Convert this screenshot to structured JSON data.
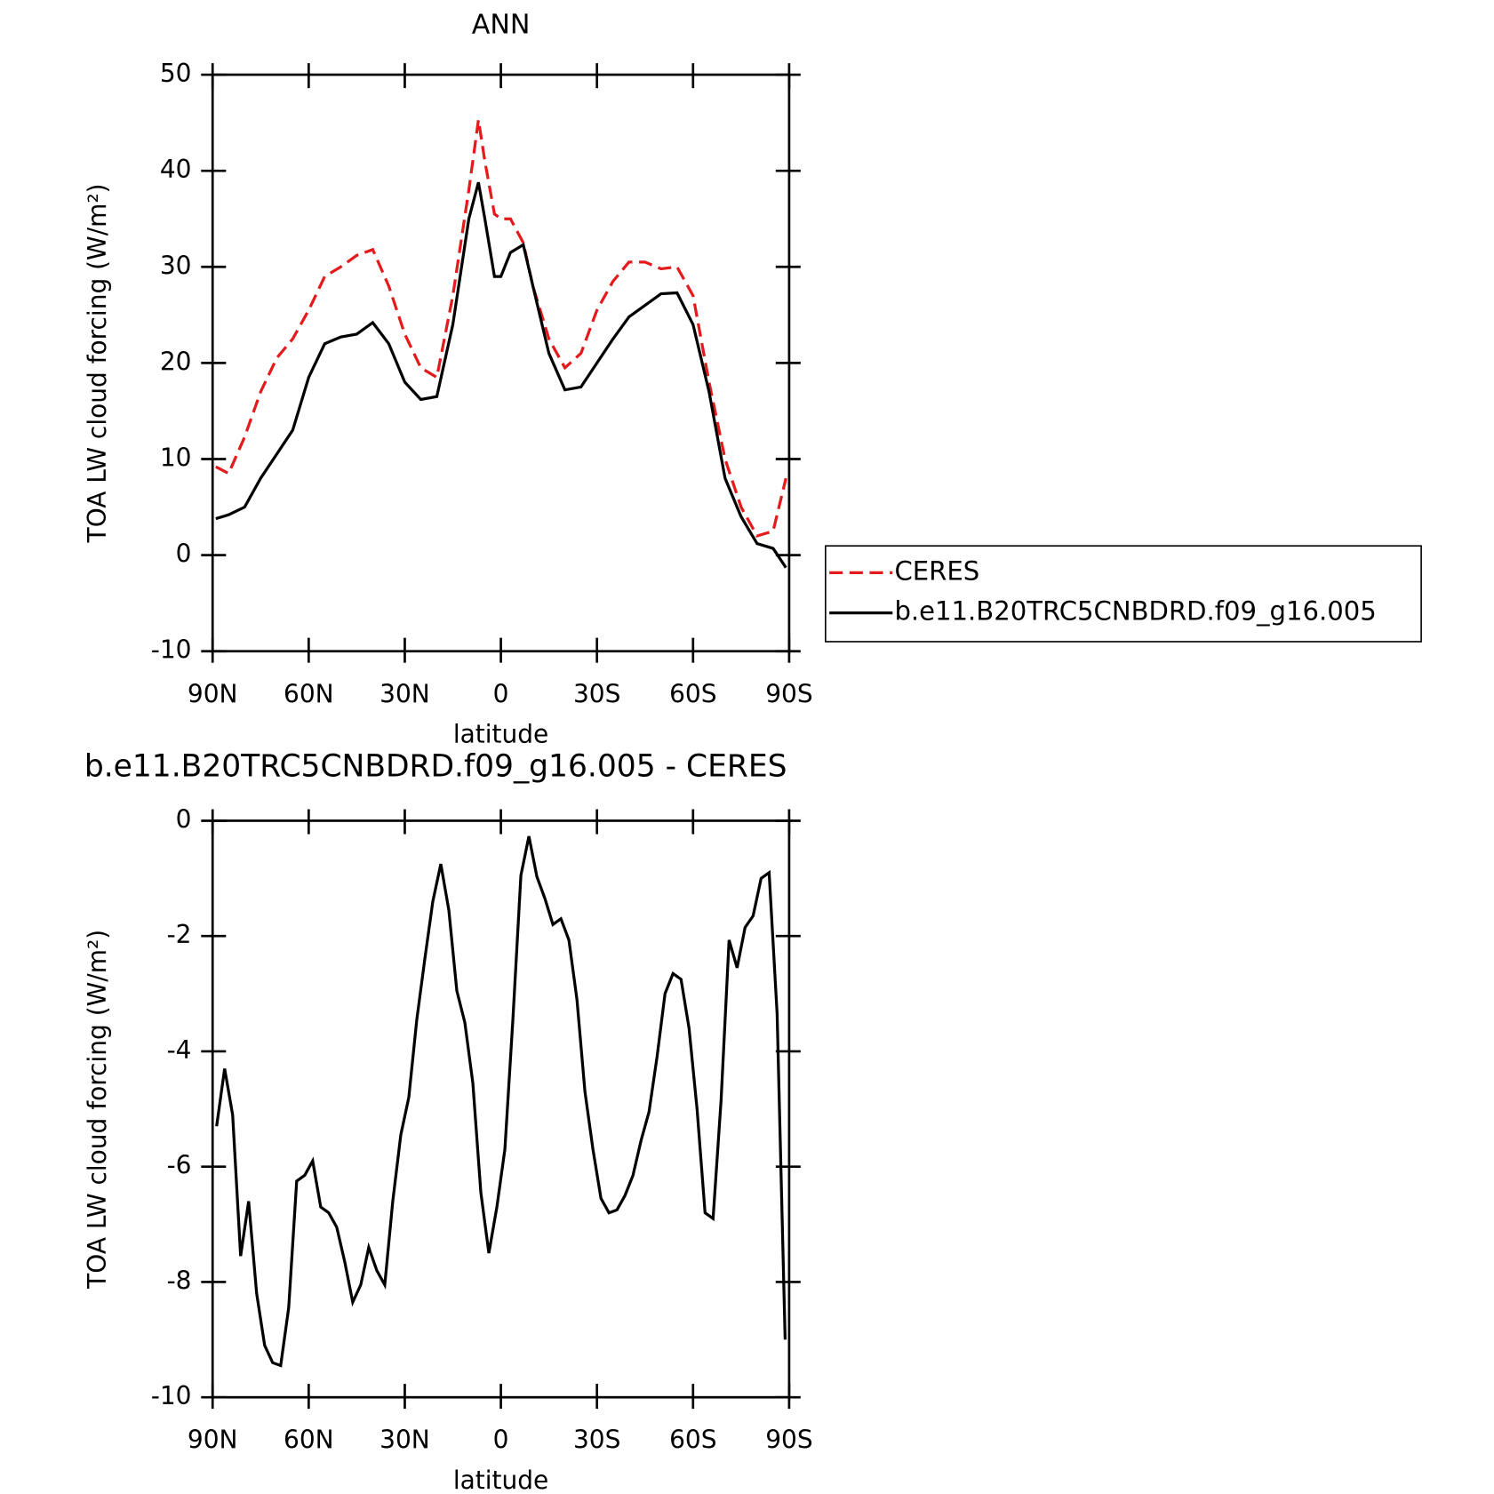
{
  "chart_data": [
    {
      "type": "line",
      "title": "ANN",
      "xlabel": "latitude",
      "ylabel": "TOA LW cloud forcing (W/m²)",
      "x": [
        89,
        85,
        80,
        75,
        70,
        65,
        60,
        55,
        50,
        45,
        40,
        35,
        30,
        25,
        20,
        15,
        10,
        7,
        5,
        2,
        0,
        -3,
        -7,
        -10,
        -15,
        -20,
        -25,
        -30,
        -35,
        -40,
        -45,
        -50,
        -55,
        -60,
        -65,
        -70,
        -75,
        -80,
        -85,
        -89
      ],
      "series": [
        {
          "name": "CERES",
          "color": "#e41a1c",
          "dash": true,
          "values": [
            9.2,
            8.5,
            12.3,
            17,
            20.5,
            22.5,
            25.5,
            29,
            30,
            31.2,
            31.8,
            28,
            23,
            19.5,
            18.5,
            27,
            38,
            45.3,
            41,
            35.5,
            35,
            35,
            32.5,
            28,
            22.5,
            19.5,
            21,
            25.5,
            28.5,
            30.5,
            30.5,
            29.8,
            30,
            27,
            18,
            10,
            5,
            2,
            2.5,
            8
          ]
        },
        {
          "name": "b.e11.B20TRC5CNBDRD.f09_g16.005",
          "color": "#000000",
          "dash": false,
          "values": [
            3.8,
            4.2,
            5,
            8,
            10.5,
            13,
            18.5,
            22,
            22.7,
            23,
            24.2,
            22,
            18,
            16.2,
            16.5,
            24,
            35,
            38.8,
            35,
            29,
            29,
            31.5,
            32.3,
            28,
            21,
            17.2,
            17.5,
            20,
            22.5,
            24.8,
            26,
            27.2,
            27.3,
            24,
            17,
            8,
            4,
            1.2,
            0.7,
            -1.3
          ]
        }
      ],
      "xlim": [
        90,
        -90
      ],
      "xticks": [
        {
          "value": 90,
          "label": "90N"
        },
        {
          "value": 60,
          "label": "60N"
        },
        {
          "value": 30,
          "label": "30N"
        },
        0,
        {
          "value": -30,
          "label": "30S"
        },
        {
          "value": -60,
          "label": "60S"
        },
        {
          "value": -90,
          "label": "90S"
        }
      ],
      "ylim": [
        -10,
        50
      ],
      "yticks": [
        50,
        40,
        30,
        20,
        10,
        0,
        -10
      ],
      "legend": "right"
    },
    {
      "type": "line",
      "title": "b.e11.B20TRC5CNBDRD.f09_g16.005 - CERES",
      "xlabel": "latitude",
      "ylabel": "TOA LW cloud forcing (W/m²)",
      "x": [
        88.75,
        86.25,
        83.75,
        81.25,
        78.75,
        76.25,
        73.75,
        71.25,
        68.75,
        66.25,
        63.75,
        61.25,
        58.75,
        56.25,
        53.75,
        51.25,
        48.75,
        46.25,
        43.75,
        41.25,
        38.75,
        36.25,
        33.75,
        31.25,
        28.75,
        26.25,
        23.75,
        21.25,
        18.75,
        16.25,
        13.75,
        11.25,
        8.75,
        6.25,
        3.75,
        1.25,
        -1.25,
        -3.75,
        -6.25,
        -8.75,
        -11.25,
        -13.75,
        -16.25,
        -18.75,
        -21.25,
        -23.75,
        -26.25,
        -28.75,
        -31.25,
        -33.75,
        -36.25,
        -38.75,
        -41.25,
        -43.75,
        -46.25,
        -48.75,
        -51.25,
        -53.75,
        -56.25,
        -58.75,
        -61.25,
        -63.75,
        -66.25,
        -68.75,
        -71.25,
        -73.75,
        -76.25,
        -78.75,
        -81.25,
        -83.75,
        -86.25,
        -88.75
      ],
      "series": [
        {
          "name": "b.e11.B20TRC5CNBDRD.f09_g16.005 - CERES",
          "color": "#000000",
          "dash": false,
          "values": [
            -5.3,
            -4.3,
            -5.1,
            -7.55,
            -6.6,
            -8.2,
            -9.1,
            -9.4,
            -9.45,
            -8.45,
            -6.25,
            -6.15,
            -5.9,
            -6.7,
            -6.8,
            -7.05,
            -7.65,
            -8.35,
            -8.05,
            -7.4,
            -7.8,
            -8.05,
            -6.6,
            -5.45,
            -4.8,
            -3.45,
            -2.4,
            -1.4,
            -0.75,
            -1.55,
            -2.95,
            -3.5,
            -4.55,
            -6.45,
            -7.5,
            -6.7,
            -5.7,
            -3.45,
            -0.95,
            -0.27,
            -0.97,
            -1.35,
            -1.8,
            -1.7,
            -2.07,
            -3.1,
            -4.7,
            -5.7,
            -6.55,
            -6.8,
            -6.75,
            -6.5,
            -6.15,
            -5.55,
            -5.05,
            -4.1,
            -3.0,
            -2.65,
            -2.75,
            -3.6,
            -5.0,
            -6.8,
            -6.9,
            -4.85,
            -2.07,
            -2.55,
            -1.85,
            -1.65,
            -1.0,
            -0.9,
            -3.35,
            -9.0
          ]
        }
      ],
      "xlim": [
        90,
        -90
      ],
      "xticks": [
        {
          "value": 90,
          "label": "90N"
        },
        {
          "value": 60,
          "label": "60N"
        },
        {
          "value": 30,
          "label": "30N"
        },
        0,
        {
          "value": -30,
          "label": "30S"
        },
        {
          "value": -60,
          "label": "60S"
        },
        {
          "value": -90,
          "label": "90S"
        }
      ],
      "ylim": [
        -10,
        0
      ],
      "yticks": [
        0,
        -2,
        -4,
        -6,
        -8,
        -10
      ]
    }
  ]
}
